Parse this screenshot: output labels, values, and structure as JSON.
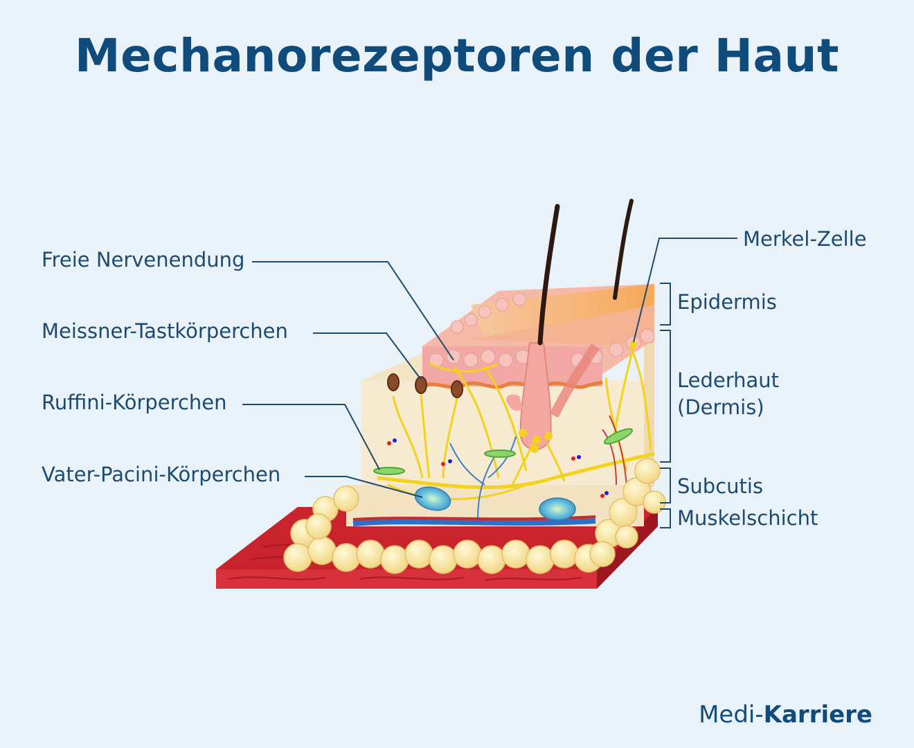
{
  "title": "Mechanorezeptoren der Haut",
  "labels": {
    "freie_nervenendung": "Freie Nervenendung",
    "meissner": "Meissner-Tastkörperchen",
    "ruffini": "Ruffini-Körperchen",
    "vater_pacini": "Vater-Pacini-Körperchen",
    "merkel": "Merkel-Zelle"
  },
  "layers": {
    "epidermis": "Epidermis",
    "lederhaut_1": "Lederhaut",
    "lederhaut_2": "(Dermis)",
    "subcutis": "Subcutis",
    "muskelschicht": "Muskelschicht"
  },
  "brand": {
    "part1": "Medi-",
    "part2": "Karriere"
  },
  "colors": {
    "title": "#0f4c7c",
    "leader_line": "#1d4a70",
    "background": "#eaf2f9"
  }
}
